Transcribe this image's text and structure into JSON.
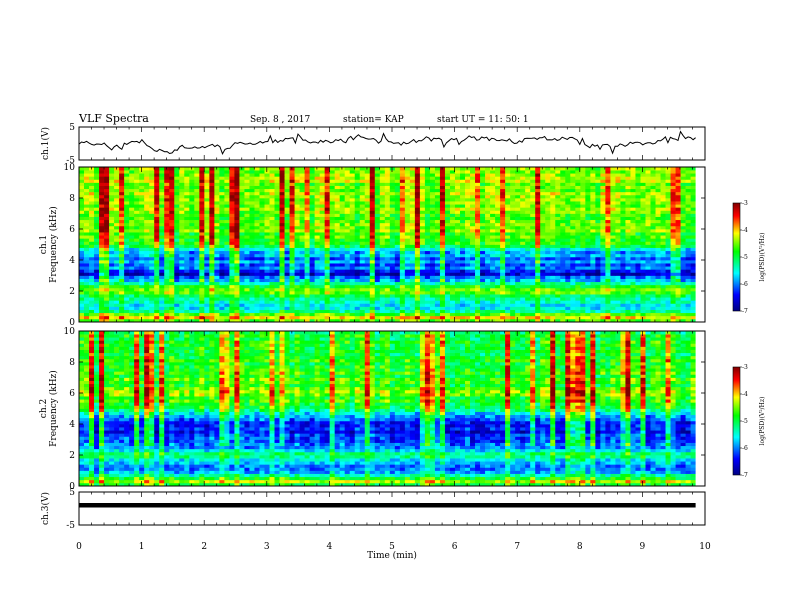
{
  "header": {
    "title": "VLF Spectra",
    "date": "Sep. 8 , 2017",
    "station": "station= KAP",
    "start": "start UT =   11: 50: 1"
  },
  "chart_data": [
    {
      "type": "line",
      "panel": "ch1-waveform",
      "ylabel": "ch.1(V)",
      "ylim": [
        -5,
        5
      ],
      "y_ticks": [
        {
          "v": 5,
          "label": "5"
        },
        {
          "v": -5,
          "label": "-5"
        }
      ],
      "x_range_min": [
        0,
        9.85
      ],
      "samples": 246,
      "seed": 11,
      "mean": 0.3,
      "std": 1.1,
      "line_color": "#000000"
    },
    {
      "type": "heatmap",
      "panel": "ch1-spectrogram",
      "ylabel": "ch.1\nFrequency (kHz)",
      "ylim": [
        0,
        10
      ],
      "y_ticks": [
        {
          "v": 0,
          "label": "0"
        },
        {
          "v": 2,
          "label": "2"
        },
        {
          "v": 4,
          "label": "4"
        },
        {
          "v": 6,
          "label": "6"
        },
        {
          "v": 8,
          "label": "8"
        },
        {
          "v": 10,
          "label": "10"
        }
      ],
      "x_range_min": [
        0,
        9.85
      ],
      "value_range_logpsd": [
        -7,
        -3
      ],
      "seed": 3,
      "band_profile_kHz": [
        {
          "f": 0.0,
          "v": 0.5
        },
        {
          "f": 0.3,
          "v": 0.75
        },
        {
          "f": 0.8,
          "v": 0.4
        },
        {
          "f": 1.2,
          "v": 0.35
        },
        {
          "f": 1.7,
          "v": 0.45
        },
        {
          "f": 2.0,
          "v": 0.62
        },
        {
          "f": 2.3,
          "v": 0.5
        },
        {
          "f": 2.7,
          "v": 0.25
        },
        {
          "f": 3.1,
          "v": 0.13
        },
        {
          "f": 3.5,
          "v": 0.22
        },
        {
          "f": 4.0,
          "v": 0.25
        },
        {
          "f": 4.5,
          "v": 0.3
        },
        {
          "f": 5.0,
          "v": 0.52
        },
        {
          "f": 5.4,
          "v": 0.55
        },
        {
          "f": 6.0,
          "v": 0.6
        },
        {
          "f": 7.0,
          "v": 0.62
        },
        {
          "f": 8.0,
          "v": 0.64
        },
        {
          "f": 10.0,
          "v": 0.62
        }
      ],
      "colorbar_label": "log(PSD)(V²/Hz)",
      "colorbar_ticks": [
        {
          "v": -3,
          "label": "-3"
        },
        {
          "v": -4,
          "label": "-4"
        },
        {
          "v": -5,
          "label": "-5"
        },
        {
          "v": -6,
          "label": "-6"
        },
        {
          "v": -7,
          "label": "-7"
        }
      ]
    },
    {
      "type": "heatmap",
      "panel": "ch2-spectrogram",
      "ylabel": "ch.2\nFrequency (kHz)",
      "ylim": [
        0,
        10
      ],
      "y_ticks": [
        {
          "v": 0,
          "label": "0"
        },
        {
          "v": 2,
          "label": "2"
        },
        {
          "v": 4,
          "label": "4"
        },
        {
          "v": 6,
          "label": "6"
        },
        {
          "v": 8,
          "label": "8"
        },
        {
          "v": 10,
          "label": "10"
        }
      ],
      "x_range_min": [
        0,
        9.85
      ],
      "value_range_logpsd": [
        -7,
        -3
      ],
      "seed": 7,
      "band_profile_kHz": [
        {
          "f": 0.0,
          "v": 0.45
        },
        {
          "f": 0.3,
          "v": 0.65
        },
        {
          "f": 0.8,
          "v": 0.3
        },
        {
          "f": 1.2,
          "v": 0.25
        },
        {
          "f": 1.7,
          "v": 0.35
        },
        {
          "f": 2.0,
          "v": 0.45
        },
        {
          "f": 2.3,
          "v": 0.35
        },
        {
          "f": 2.7,
          "v": 0.22
        },
        {
          "f": 3.1,
          "v": 0.18
        },
        {
          "f": 3.5,
          "v": 0.15
        },
        {
          "f": 4.0,
          "v": 0.12
        },
        {
          "f": 4.5,
          "v": 0.3
        },
        {
          "f": 5.0,
          "v": 0.5
        },
        {
          "f": 5.4,
          "v": 0.55
        },
        {
          "f": 6.0,
          "v": 0.6
        },
        {
          "f": 7.0,
          "v": 0.55
        },
        {
          "f": 8.0,
          "v": 0.55
        },
        {
          "f": 10.0,
          "v": 0.5
        }
      ],
      "colorbar_label": "log(PSD)(V²/Hz)",
      "colorbar_ticks": [
        {
          "v": -3,
          "label": "-3"
        },
        {
          "v": -4,
          "label": "-4"
        },
        {
          "v": -5,
          "label": "-5"
        },
        {
          "v": -6,
          "label": "-6"
        },
        {
          "v": -7,
          "label": "-7"
        }
      ]
    },
    {
      "type": "line",
      "panel": "ch3-waveform",
      "ylabel": "ch.3(V)",
      "ylim": [
        -5,
        5
      ],
      "y_ticks": [
        {
          "v": 5,
          "label": "5"
        },
        {
          "v": -5,
          "label": "-5"
        }
      ],
      "x_range_min": [
        0,
        9.85
      ],
      "constant_value": 1.0,
      "line_color": "#000000"
    }
  ],
  "xaxis": {
    "label": "Time (min)",
    "xlim": [
      0,
      10
    ],
    "ticks": [
      {
        "v": 0,
        "label": "0"
      },
      {
        "v": 1,
        "label": "1"
      },
      {
        "v": 2,
        "label": "2"
      },
      {
        "v": 3,
        "label": "3"
      },
      {
        "v": 4,
        "label": "4"
      },
      {
        "v": 5,
        "label": "5"
      },
      {
        "v": 6,
        "label": "6"
      },
      {
        "v": 7,
        "label": "7"
      },
      {
        "v": 8,
        "label": "8"
      },
      {
        "v": 9,
        "label": "9"
      },
      {
        "v": 10,
        "label": "10"
      }
    ]
  },
  "colors": {
    "colormap": [
      "#000080",
      "#0000ff",
      "#00ffff",
      "#00ff00",
      "#ffff00",
      "#ff0000",
      "#800000"
    ]
  }
}
